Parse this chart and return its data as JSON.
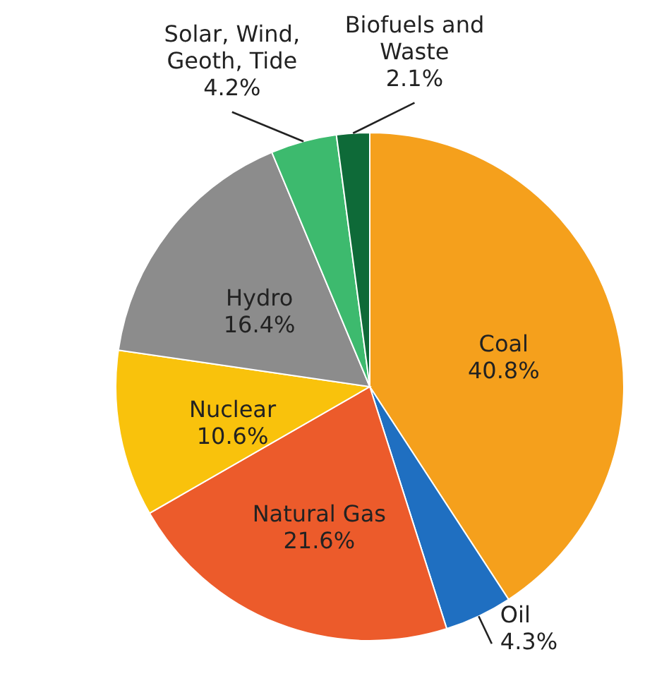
{
  "chart_data": {
    "type": "pie",
    "categories": [
      "Coal",
      "Oil",
      "Natural Gas",
      "Nuclear",
      "Hydro",
      "Solar, Wind, Geoth, Tide",
      "Biofuels and Waste"
    ],
    "values": [
      40.8,
      4.3,
      21.6,
      10.6,
      16.4,
      4.2,
      2.1
    ],
    "colors": [
      "#f5a01c",
      "#1f6fc1",
      "#ec5b2b",
      "#f9c20c",
      "#8c8c8c",
      "#3dba6e",
      "#0e6a38"
    ],
    "value_labels": [
      "40.8%",
      "4.3%",
      "21.6%",
      "10.6%",
      "16.4%",
      "4.2%",
      "2.1%"
    ]
  }
}
